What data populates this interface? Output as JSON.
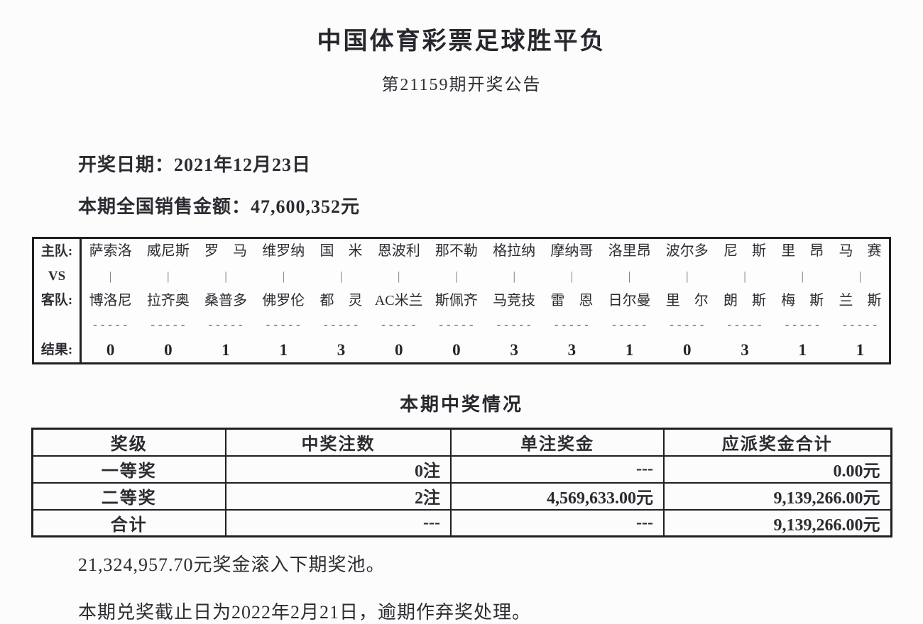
{
  "header": {
    "title": "中国体育彩票足球胜平负",
    "subtitle": "第21159期开奖公告"
  },
  "info": {
    "draw_date_line": "开奖日期：2021年12月23日",
    "sales_line": "本期全国销售金额：47,600,352元"
  },
  "match_table": {
    "row_labels": {
      "home": "主队:",
      "vs": "VS",
      "away": "客队:",
      "result": "结果:"
    },
    "separator_bar": "|",
    "separator_dashes": "-----",
    "matches": [
      {
        "home": "萨索洛",
        "away": "博洛尼",
        "result": "0"
      },
      {
        "home": "威尼斯",
        "away": "拉齐奥",
        "result": "0"
      },
      {
        "home": "罗　马",
        "away": "桑普多",
        "result": "1"
      },
      {
        "home": "维罗纳",
        "away": "佛罗伦",
        "result": "1"
      },
      {
        "home": "国　米",
        "away": "都　灵",
        "result": "3"
      },
      {
        "home": "恩波利",
        "away": "AC米兰",
        "result": "0"
      },
      {
        "home": "那不勒",
        "away": "斯佩齐",
        "result": "0"
      },
      {
        "home": "格拉纳",
        "away": "马竞技",
        "result": "3"
      },
      {
        "home": "摩纳哥",
        "away": "雷　恩",
        "result": "3"
      },
      {
        "home": "洛里昂",
        "away": "日尔曼",
        "result": "1"
      },
      {
        "home": "波尔多",
        "away": "里　尔",
        "result": "0"
      },
      {
        "home": "尼　斯",
        "away": "朗　斯",
        "result": "3"
      },
      {
        "home": "里　昂",
        "away": "梅　斯",
        "result": "1"
      },
      {
        "home": "马　赛",
        "away": "兰　斯",
        "result": "1"
      }
    ]
  },
  "prize_section": {
    "heading": "本期中奖情况",
    "table": {
      "headers": [
        "奖级",
        "中奖注数",
        "单注奖金",
        "应派奖金合计"
      ],
      "rows": [
        [
          "一等奖",
          "0注",
          "---",
          "0.00元"
        ],
        [
          "二等奖",
          "2注",
          "4,569,633.00元",
          "9,139,266.00元"
        ],
        [
          "合计",
          "---",
          "---",
          "9,139,266.00元"
        ]
      ]
    }
  },
  "footer": {
    "rollover_line": "21,324,957.70元奖金滚入下期奖池。",
    "deadline_line": "本期兑奖截止日为2022年2月21日，逾期作弃奖处理。"
  },
  "colors": {
    "ink": "#2b2b31",
    "table_border": "#1f1f24",
    "background": "#fcfcfc"
  }
}
